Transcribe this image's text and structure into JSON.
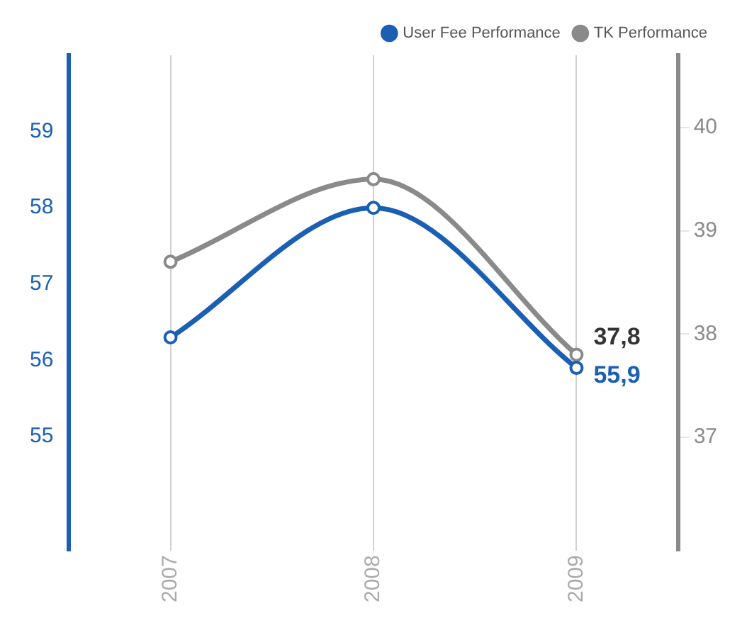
{
  "chart_data": {
    "type": "line",
    "categories": [
      "2007",
      "2008",
      "2009"
    ],
    "series": [
      {
        "name": "User Fee Performance",
        "color": "#1a5fb4",
        "values": [
          56.3,
          58.0,
          55.9
        ],
        "value_labels": [
          null,
          null,
          "55,9"
        ]
      },
      {
        "name": "TK Performance",
        "color": "#8a8a8a",
        "values": [
          38.7,
          39.5,
          37.8
        ],
        "axis": "y2",
        "value_labels": [
          null,
          null,
          "37,8"
        ]
      }
    ],
    "ylim": [
      53.5,
      60
    ],
    "yticks": [
      55,
      56,
      57,
      58,
      59
    ],
    "y2lim": [
      35.9,
      40.7
    ],
    "y2ticks": [
      37,
      38,
      39,
      40
    ],
    "grid": "x",
    "legend": "top right",
    "marker": "circle",
    "line_style": "solid"
  }
}
